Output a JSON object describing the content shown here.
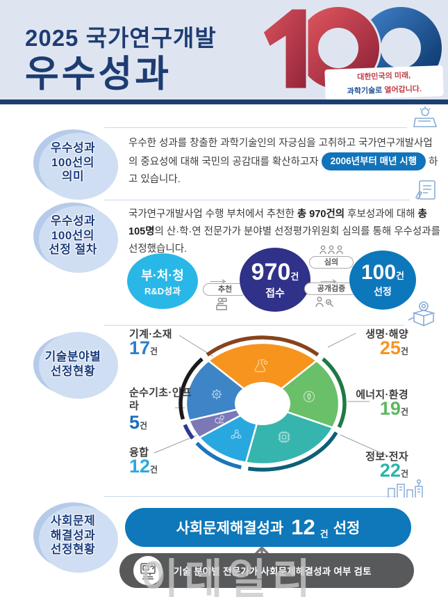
{
  "header": {
    "title_line1": "2025 국가연구개발",
    "title_line2": "우수성과",
    "logo_number": "100",
    "tagline_line1": "대한민국의 미래,",
    "tagline_line2_blue": "과학기술로",
    "tagline_line2_red": " 열어갑니다."
  },
  "meaning": {
    "badge_line1": "우수성과",
    "badge_line2": "100선의",
    "badge_line3": "의미",
    "text_pre": "우수한 성과를 창출한 과학기술인의 자긍심을 고취하고 국가연구개발사업의 중요성에 대해 국민의 공감대를 확산하고자 ",
    "pill": "2006년부터 매년 시행",
    "text_post": " 하고 있습니다."
  },
  "process": {
    "badge_line1": "우수성과",
    "badge_line2": "100선의",
    "badge_line3": "선정 절차",
    "text_seg1": "국가연구개발사업 수행 부처에서 추천한 ",
    "text_bold1": "총 970건의",
    "text_seg2": " 후보성과에 대해 ",
    "text_bold2": "총 105명",
    "text_seg3": "의 산·학·연 전문가가 분야별 선정평가위원회 심의를 통해 우수성과를 선정했습니다.",
    "flow": {
      "step1_line1": "부·처·청",
      "step1_line2": "R&D성과",
      "label_recommend": "추천",
      "step2_number": "970",
      "step2_unit": "건",
      "step2_caption": "접수",
      "label_review": "심의",
      "label_verify": "공개검증",
      "step3_number": "100",
      "step3_unit": "건",
      "step3_caption": "선정"
    }
  },
  "fields": {
    "badge_line1": "기술분야별",
    "badge_line2": "선정현황"
  },
  "social": {
    "badge_line1": "사회문제",
    "badge_line2": "해결성과",
    "badge_line3": "선정현황",
    "pill_label": "사회문제해결성과",
    "pill_number": "12",
    "pill_unit": "건",
    "pill_suffix": "선정",
    "note": "기술 분야별 전문가가 사회문제해결성과 여부 검토",
    "watermark": "이데일리"
  },
  "chart_data": {
    "type": "pie",
    "title": "기술분야별 선정현황",
    "unit": "건",
    "categories": [
      "생명·해양",
      "에너지·환경",
      "정보·전자",
      "융합",
      "순수기초·인프라",
      "기계·소재"
    ],
    "values": [
      25,
      19,
      22,
      12,
      5,
      17
    ],
    "total": 100,
    "colors": [
      "#f7941e",
      "#6abf69",
      "#35b5ad",
      "#29a8e0",
      "#7b78b8",
      "#3d85c6"
    ],
    "arc_colors": [
      "#87431c",
      "#1d7a45",
      "#0d6077",
      "#1c75bc",
      "#2b3990",
      "#1a1a1a"
    ],
    "value_colors": [
      "#f7941e",
      "#5cb85f",
      "#2ab5ac",
      "#29a8e0",
      "#1e6cb8",
      "#2a7fc9"
    ],
    "start_angle_deg": -45,
    "donut": true,
    "legend_position": "sides"
  }
}
